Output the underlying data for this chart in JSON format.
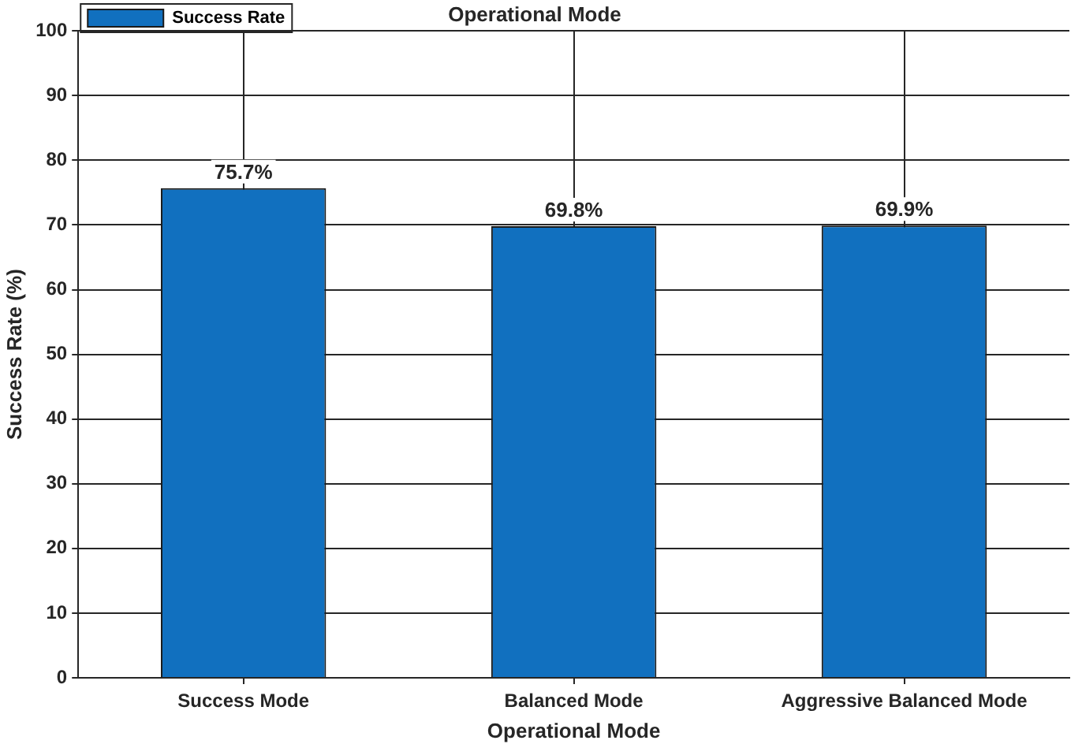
{
  "chart_data": {
    "type": "bar",
    "title": "Operational Mode",
    "xlabel": "Operational Mode",
    "ylabel": "Success Rate (%)",
    "categories": [
      "Success Mode",
      "Balanced Mode",
      "Aggressive Balanced Mode"
    ],
    "series": [
      {
        "name": "Success Rate",
        "color": "#1170bf",
        "values": [
          75.7,
          69.8,
          69.9
        ],
        "value_labels": [
          "75.7%",
          "69.8%",
          "69.9%"
        ]
      }
    ],
    "ylim": [
      0,
      100
    ],
    "yticks": [
      0,
      10,
      20,
      30,
      40,
      50,
      60,
      70,
      80,
      90,
      100
    ],
    "grid": true,
    "legend": "top left"
  }
}
